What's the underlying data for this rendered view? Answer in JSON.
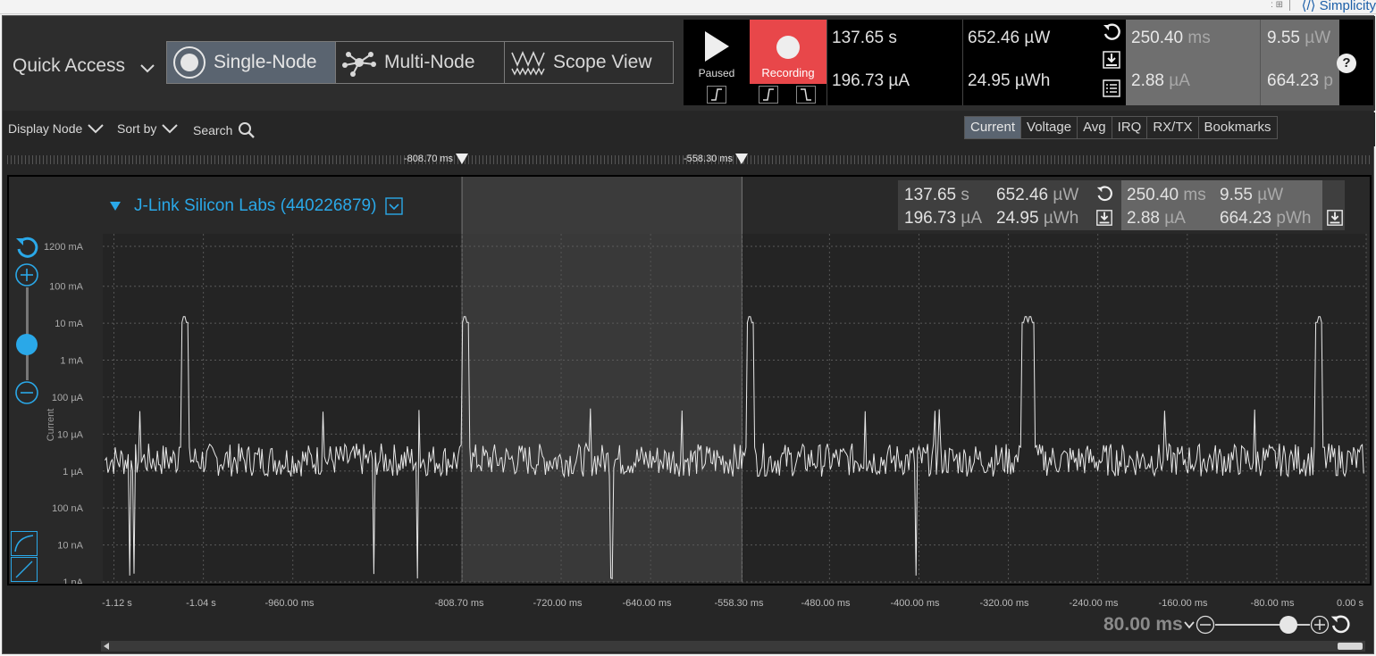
{
  "window": {
    "brand_fragment": "Simplicity"
  },
  "quick_access": {
    "label": "Quick Access"
  },
  "modes": [
    {
      "label": "Single-Node",
      "active": true
    },
    {
      "label": "Multi-Node",
      "active": false
    },
    {
      "label": "Scope View",
      "active": false
    }
  ],
  "controls": {
    "paused_label": "Paused",
    "recording_label": "Recording",
    "time": "137.65 s",
    "power": "652.46 µW",
    "current": "196.73 µA",
    "energy": "24.95 µWh",
    "sel_time_value": "250.40",
    "sel_time_unit": " ms",
    "sel_current_value": "2.88",
    "sel_current_unit": " µA",
    "sel_power_value": "9.55",
    "sel_power_unit": " µW",
    "sel_energy_value": "664.23",
    "sel_energy_unit": " p"
  },
  "toolbar": {
    "display_node": "Display Node",
    "sort_by": "Sort by",
    "search": "Search",
    "tabs": [
      "Current",
      "Voltage",
      "Avg",
      "IRQ",
      "RX/TX",
      "Bookmarks"
    ],
    "active_tab": "Current"
  },
  "markers": {
    "left": "-808.70 ms",
    "right": "-558.30 ms"
  },
  "node": {
    "title": "J-Link Silicon Labs (440226879)",
    "time_value": "137.65",
    "time_unit": " s",
    "current_value": "196.73",
    "current_unit": " µA",
    "power_value": "652.46",
    "power_unit": " µW",
    "energy_value": "24.95",
    "energy_unit": " µWh",
    "sel_time_value": "250.40",
    "sel_time_unit": " ms",
    "sel_current_value": "2.88",
    "sel_current_unit": " µA",
    "sel_power_value": "9.55",
    "sel_power_unit": " µW",
    "sel_energy_value": "664.23",
    "sel_energy_unit": " pWh"
  },
  "colors": {
    "accent": "#2aa8e8",
    "recording": "#e8474a",
    "trace": "#e8e8e8"
  },
  "chart_data": {
    "type": "line",
    "ylabel": "Current",
    "y_scale": "log",
    "y_ticks": [
      "1200 mA",
      "100 mA",
      "10 mA",
      "1 mA",
      "100 µA",
      "10 µA",
      "1 µA",
      "100 nA",
      "10 nA",
      "1 nA"
    ],
    "x_ticks": [
      "-1.12 s",
      "-1.04 s",
      "-960.00 ms",
      "-808.70 ms",
      "-720.00 ms",
      "-640.00 ms",
      "-558.30 ms",
      "-480.00 ms",
      "-400.00 ms",
      "-320.00 ms",
      "-240.00 ms",
      "-160.00 ms",
      "-80.00 ms",
      "0.00 s"
    ],
    "selection": [
      "-808.70 ms",
      "-558.30 ms"
    ],
    "baseline": "2 µA",
    "high_peaks": [
      {
        "t_ms": -1057,
        "value": "15 mA"
      },
      {
        "t_ms": -806,
        "value": "15 mA"
      },
      {
        "t_ms": -551,
        "value": "15 mA"
      },
      {
        "t_ms": -305,
        "value": "15 mA"
      },
      {
        "t_ms": -300,
        "value": "15 mA"
      },
      {
        "t_ms": -42,
        "value": "15 mA"
      }
    ],
    "mid_spikes_ms": [
      -1097,
      -933,
      -848,
      -694,
      -612,
      -448,
      -382,
      -386,
      -180,
      -100
    ],
    "dips_ms": [
      -1106,
      -1102,
      -888,
      -849,
      -675,
      -403
    ]
  },
  "bottom": {
    "zoom": "80.00 ms"
  }
}
